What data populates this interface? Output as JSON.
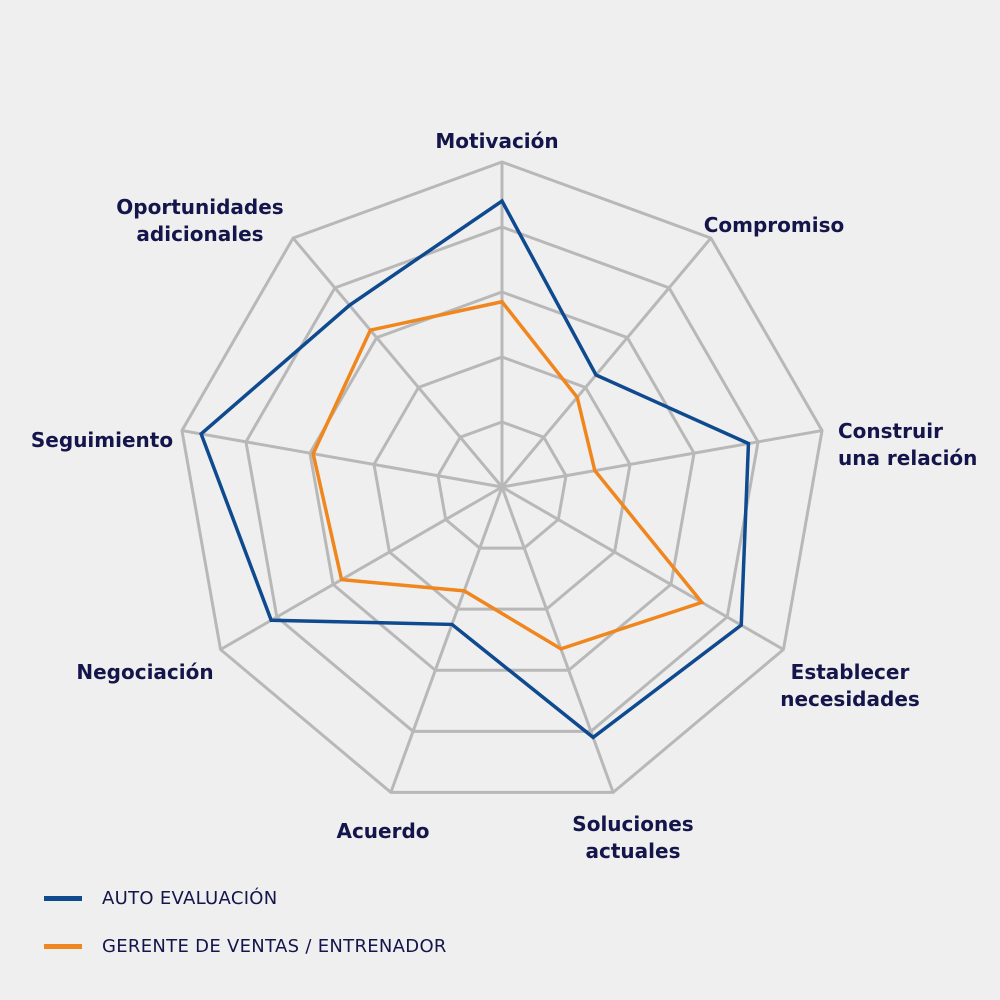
{
  "chart_data": {
    "type": "radar",
    "categories": [
      "Motivación",
      "Compromiso",
      "Construir\nuna relación",
      "Establecer\nnecesidades",
      "Soluciones\nactuales",
      "Acuerdo",
      "Negociación",
      "Seguimiento",
      "Oportunidades\nadicionales"
    ],
    "series": [
      {
        "name": "AUTO EVALUACIÓN",
        "color": "#0f4a8f",
        "values": [
          88,
          45,
          77,
          85,
          82,
          45,
          82,
          94,
          73
        ]
      },
      {
        "name": "GERENTE DE VENTAS / ENTRENADOR",
        "color": "#f0861e",
        "values": [
          57,
          36,
          29,
          71,
          53,
          34,
          57,
          59,
          63
        ]
      }
    ],
    "range": [
      0,
      100
    ],
    "grid": true,
    "grid_levels": 5,
    "grid_color": "#b8b8b8",
    "legend_position": "bottom-left"
  }
}
